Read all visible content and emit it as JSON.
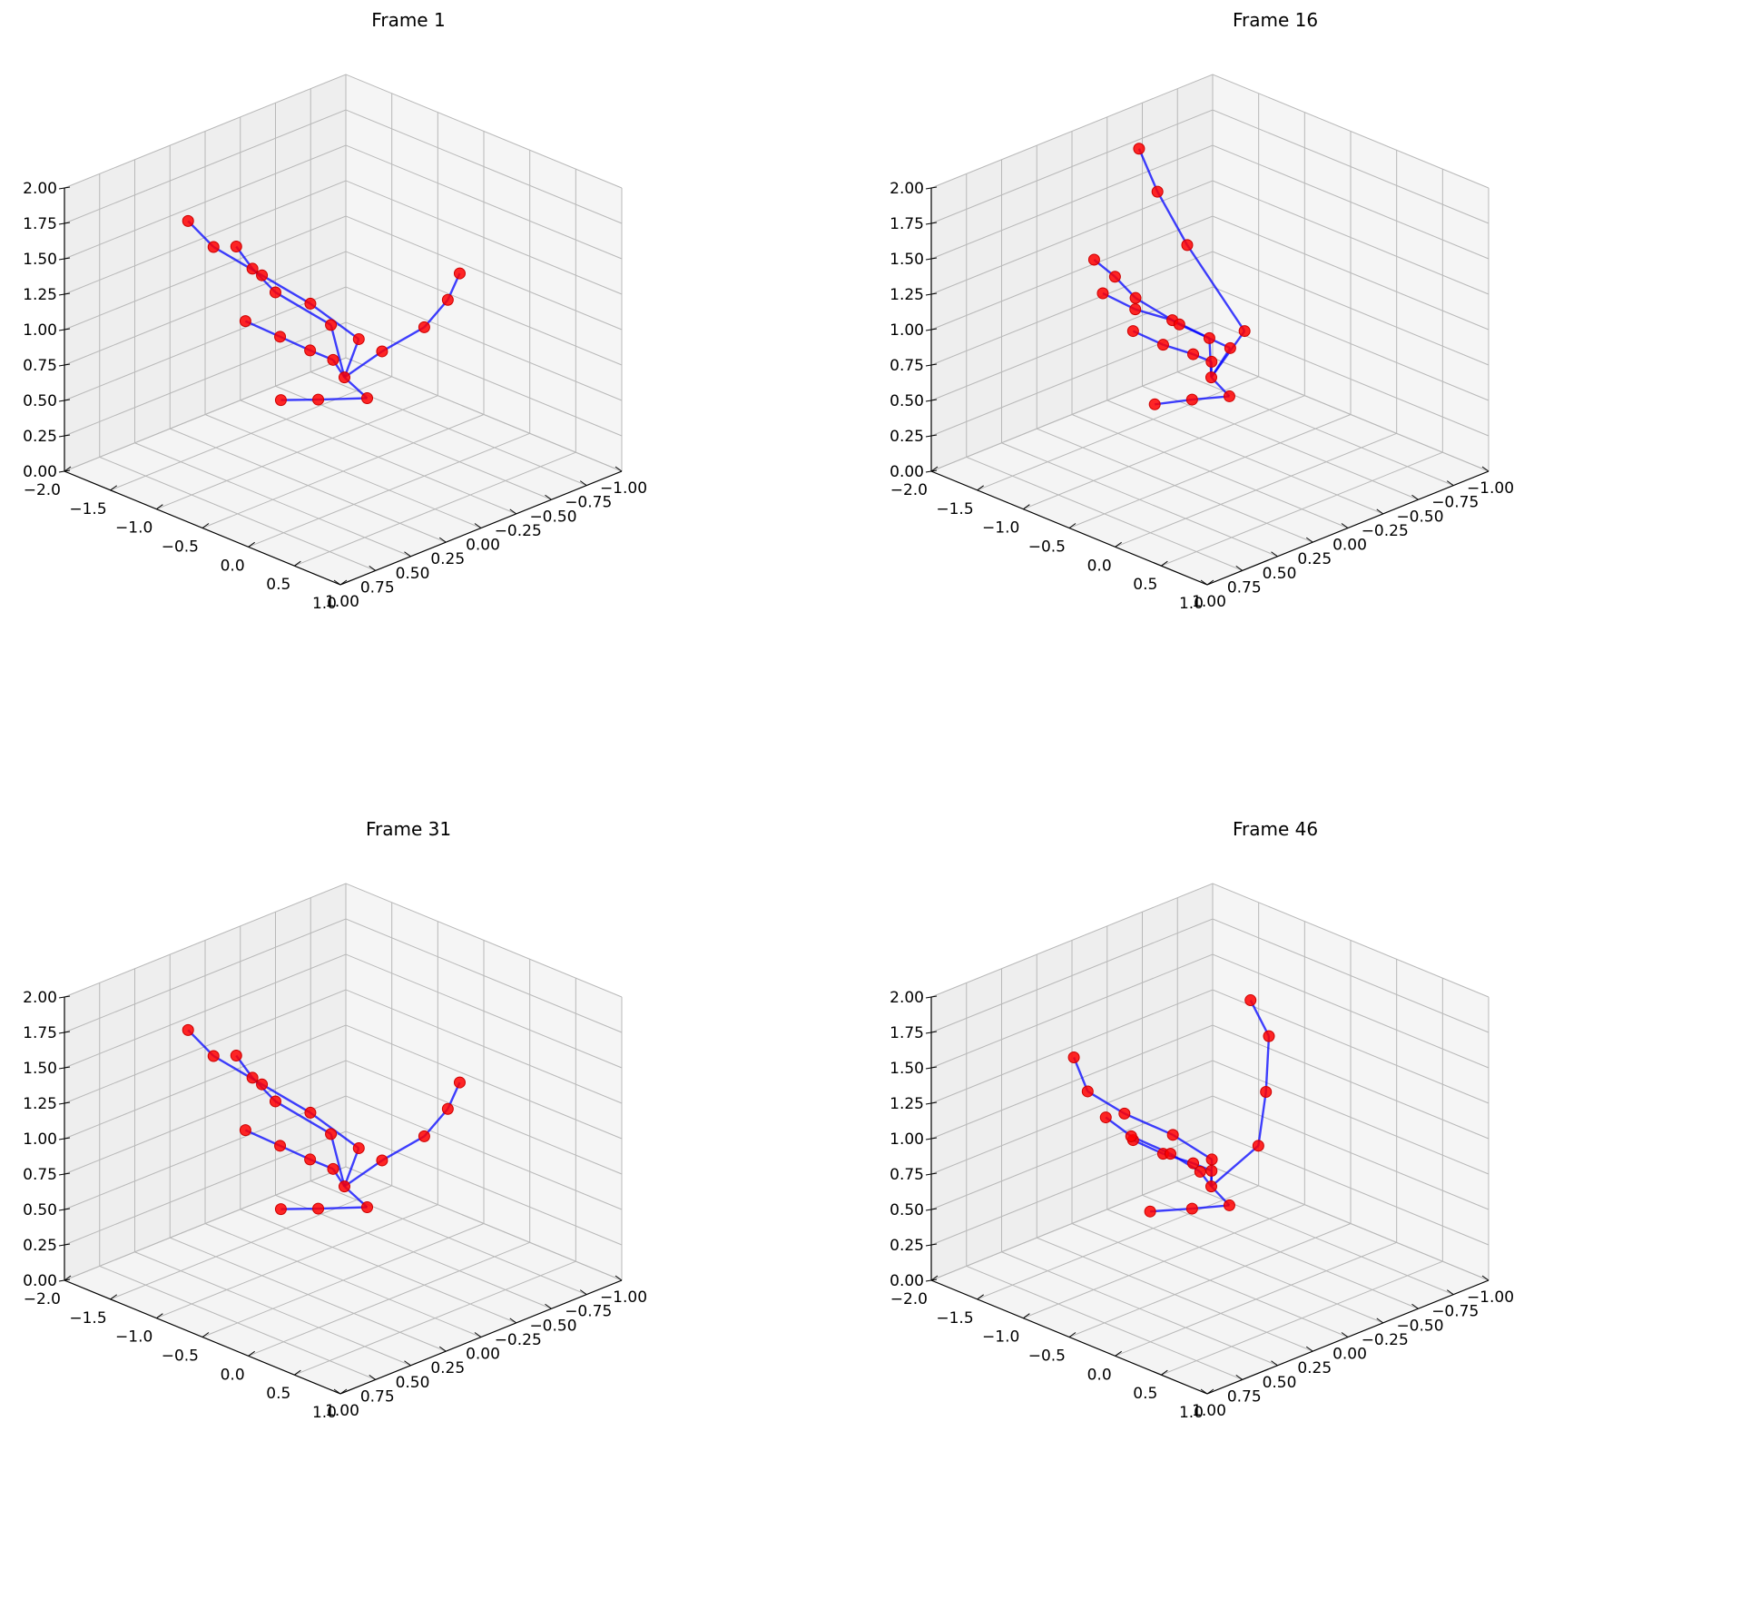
{
  "chart_data": [
    {
      "type": "scatter",
      "projection": "3d",
      "title": "Frame 1",
      "xlim": [
        -2.0,
        1.0
      ],
      "ylim": [
        -1.0,
        1.0
      ],
      "zlim": [
        0.0,
        2.0
      ],
      "x_ticks": [
        "−2.0",
        "−1.5",
        "−1.0",
        "−0.5",
        "0.0",
        "0.5",
        "1.0"
      ],
      "y_ticks": [
        "−1.00",
        "−0.75",
        "−0.50",
        "−0.25",
        "0.00",
        "0.25",
        "0.50",
        "0.75",
        "1.00"
      ],
      "z_ticks": [
        "0.00",
        "0.25",
        "0.50",
        "0.75",
        "1.00",
        "1.25",
        "1.50",
        "1.75",
        "2.00"
      ],
      "grid": true,
      "marker_color": "#ff0000",
      "line_color": "#0000ff",
      "points": [
        {
          "x": 0.05,
          "y": 0.35,
          "z": 0.95
        },
        {
          "x": -0.15,
          "y": 0.3,
          "z": 1.0
        },
        {
          "x": -0.4,
          "y": 0.3,
          "z": 1.0
        },
        {
          "x": -0.65,
          "y": 0.35,
          "z": 1.05
        },
        {
          "x": -0.95,
          "y": 0.4,
          "z": 1.1
        },
        {
          "x": -0.25,
          "y": 0.25,
          "z": 1.2
        },
        {
          "x": -0.7,
          "y": 0.35,
          "z": 1.35
        },
        {
          "x": -0.95,
          "y": 0.35,
          "z": 1.45
        },
        {
          "x": -1.05,
          "y": 0.4,
          "z": 1.6
        },
        {
          "x": -0.1,
          "y": 0.15,
          "z": 1.1
        },
        {
          "x": -0.55,
          "y": 0.2,
          "z": 1.25
        },
        {
          "x": -1.0,
          "y": 0.25,
          "z": 1.35
        },
        {
          "x": -1.45,
          "y": 0.3,
          "z": 1.45
        },
        {
          "x": -1.65,
          "y": 0.35,
          "z": 1.6
        },
        {
          "x": 0.0,
          "y": 0.05,
          "z": 1.0
        },
        {
          "x": 0.0,
          "y": -0.25,
          "z": 1.05
        },
        {
          "x": -0.05,
          "y": -0.45,
          "z": 1.15
        },
        {
          "x": -0.15,
          "y": -0.6,
          "z": 1.25
        },
        {
          "x": 0.45,
          "y": 0.45,
          "z": 0.95
        },
        {
          "x": 0.3,
          "y": 0.7,
          "z": 1.0
        },
        {
          "x": 0.2,
          "y": 0.9,
          "z": 1.05
        }
      ],
      "edges": [
        [
          0,
          1
        ],
        [
          1,
          2
        ],
        [
          2,
          3
        ],
        [
          3,
          4
        ],
        [
          0,
          5
        ],
        [
          5,
          6
        ],
        [
          6,
          7
        ],
        [
          7,
          8
        ],
        [
          0,
          9
        ],
        [
          9,
          10
        ],
        [
          10,
          11
        ],
        [
          11,
          12
        ],
        [
          12,
          13
        ],
        [
          0,
          14
        ],
        [
          14,
          15
        ],
        [
          15,
          16
        ],
        [
          16,
          17
        ],
        [
          0,
          18
        ],
        [
          18,
          19
        ],
        [
          19,
          20
        ]
      ]
    },
    {
      "type": "scatter",
      "projection": "3d",
      "title": "Frame 16",
      "xlim": [
        -2.0,
        1.0
      ],
      "ylim": [
        -1.0,
        1.0
      ],
      "zlim": [
        0.0,
        2.0
      ],
      "x_ticks": [
        "−2.0",
        "−1.5",
        "−1.0",
        "−0.5",
        "0.0",
        "0.5",
        "1.0"
      ],
      "y_ticks": [
        "−1.00",
        "−0.75",
        "−0.50",
        "−0.25",
        "0.00",
        "0.25",
        "0.50",
        "0.75",
        "1.00"
      ],
      "z_ticks": [
        "0.00",
        "0.25",
        "0.50",
        "0.75",
        "1.00",
        "1.25",
        "1.50",
        "1.75",
        "2.00"
      ],
      "grid": true,
      "marker_color": "#ff0000",
      "line_color": "#0000ff",
      "points": [
        {
          "x": 0.05,
          "y": 0.35,
          "z": 0.95
        },
        {
          "x": -0.1,
          "y": 0.25,
          "z": 0.98
        },
        {
          "x": -0.3,
          "y": 0.25,
          "z": 0.98
        },
        {
          "x": -0.55,
          "y": 0.3,
          "z": 1.0
        },
        {
          "x": -0.8,
          "y": 0.35,
          "z": 1.05
        },
        {
          "x": -0.2,
          "y": 0.2,
          "z": 1.1
        },
        {
          "x": -0.45,
          "y": 0.3,
          "z": 1.2
        },
        {
          "x": -0.7,
          "y": 0.4,
          "z": 1.25
        },
        {
          "x": -0.9,
          "y": 0.5,
          "z": 1.35
        },
        {
          "x": -0.05,
          "y": 0.15,
          "z": 1.05
        },
        {
          "x": -0.45,
          "y": 0.25,
          "z": 1.15
        },
        {
          "x": -0.85,
          "y": 0.3,
          "z": 1.25
        },
        {
          "x": -1.15,
          "y": 0.25,
          "z": 1.3
        },
        {
          "x": -1.3,
          "y": 0.3,
          "z": 1.4
        },
        {
          "x": -0.2,
          "y": -0.05,
          "z": 1.05
        },
        {
          "x": -0.9,
          "y": -0.1,
          "z": 1.45
        },
        {
          "x": -1.3,
          "y": -0.15,
          "z": 1.7
        },
        {
          "x": -1.5,
          "y": -0.15,
          "z": 1.95
        },
        {
          "x": 0.4,
          "y": 0.45,
          "z": 0.95
        },
        {
          "x": 0.3,
          "y": 0.65,
          "z": 0.98
        },
        {
          "x": 0.2,
          "y": 0.85,
          "z": 1.0
        }
      ],
      "edges": [
        [
          0,
          1
        ],
        [
          1,
          2
        ],
        [
          2,
          3
        ],
        [
          3,
          4
        ],
        [
          0,
          5
        ],
        [
          5,
          6
        ],
        [
          6,
          7
        ],
        [
          7,
          8
        ],
        [
          0,
          9
        ],
        [
          9,
          10
        ],
        [
          10,
          11
        ],
        [
          11,
          12
        ],
        [
          12,
          13
        ],
        [
          0,
          14
        ],
        [
          14,
          15
        ],
        [
          15,
          16
        ],
        [
          16,
          17
        ],
        [
          0,
          18
        ],
        [
          18,
          19
        ],
        [
          19,
          20
        ]
      ]
    },
    {
      "type": "scatter",
      "projection": "3d",
      "title": "Frame 31",
      "xlim": [
        -2.0,
        1.0
      ],
      "ylim": [
        -1.0,
        1.0
      ],
      "zlim": [
        0.0,
        2.0
      ],
      "x_ticks": [
        "−2.0",
        "−1.5",
        "−1.0",
        "−0.5",
        "0.0",
        "0.5",
        "1.0"
      ],
      "y_ticks": [
        "−1.00",
        "−0.75",
        "−0.50",
        "−0.25",
        "0.00",
        "0.25",
        "0.50",
        "0.75",
        "1.00"
      ],
      "z_ticks": [
        "0.00",
        "0.25",
        "0.50",
        "0.75",
        "1.00",
        "1.25",
        "1.50",
        "1.75",
        "2.00"
      ],
      "grid": true,
      "marker_color": "#ff0000",
      "line_color": "#0000ff",
      "points": [
        {
          "x": 0.05,
          "y": 0.35,
          "z": 0.95
        },
        {
          "x": -0.15,
          "y": 0.3,
          "z": 1.0
        },
        {
          "x": -0.4,
          "y": 0.3,
          "z": 1.0
        },
        {
          "x": -0.65,
          "y": 0.35,
          "z": 1.05
        },
        {
          "x": -0.95,
          "y": 0.4,
          "z": 1.1
        },
        {
          "x": -0.25,
          "y": 0.25,
          "z": 1.2
        },
        {
          "x": -0.7,
          "y": 0.35,
          "z": 1.35
        },
        {
          "x": -0.95,
          "y": 0.35,
          "z": 1.45
        },
        {
          "x": -1.05,
          "y": 0.4,
          "z": 1.6
        },
        {
          "x": -0.1,
          "y": 0.15,
          "z": 1.1
        },
        {
          "x": -0.55,
          "y": 0.2,
          "z": 1.25
        },
        {
          "x": -1.0,
          "y": 0.25,
          "z": 1.35
        },
        {
          "x": -1.45,
          "y": 0.3,
          "z": 1.45
        },
        {
          "x": -1.65,
          "y": 0.35,
          "z": 1.6
        },
        {
          "x": 0.0,
          "y": 0.05,
          "z": 1.0
        },
        {
          "x": 0.0,
          "y": -0.25,
          "z": 1.05
        },
        {
          "x": -0.05,
          "y": -0.45,
          "z": 1.15
        },
        {
          "x": -0.15,
          "y": -0.6,
          "z": 1.25
        },
        {
          "x": 0.45,
          "y": 0.45,
          "z": 0.95
        },
        {
          "x": 0.3,
          "y": 0.7,
          "z": 1.0
        },
        {
          "x": 0.2,
          "y": 0.9,
          "z": 1.05
        }
      ],
      "edges": [
        [
          0,
          1
        ],
        [
          1,
          2
        ],
        [
          2,
          3
        ],
        [
          3,
          4
        ],
        [
          0,
          5
        ],
        [
          5,
          6
        ],
        [
          6,
          7
        ],
        [
          7,
          8
        ],
        [
          0,
          9
        ],
        [
          9,
          10
        ],
        [
          10,
          11
        ],
        [
          11,
          12
        ],
        [
          12,
          13
        ],
        [
          0,
          14
        ],
        [
          14,
          15
        ],
        [
          15,
          16
        ],
        [
          16,
          17
        ],
        [
          0,
          18
        ],
        [
          18,
          19
        ],
        [
          19,
          20
        ]
      ]
    },
    {
      "type": "scatter",
      "projection": "3d",
      "title": "Frame 46",
      "xlim": [
        -2.0,
        1.0
      ],
      "ylim": [
        -1.0,
        1.0
      ],
      "zlim": [
        0.0,
        2.0
      ],
      "x_ticks": [
        "−2.0",
        "−1.5",
        "−1.0",
        "−0.5",
        "0.0",
        "0.5",
        "1.0"
      ],
      "y_ticks": [
        "−1.00",
        "−0.75",
        "−0.50",
        "−0.25",
        "0.00",
        "0.25",
        "0.50",
        "0.75",
        "1.00"
      ],
      "z_ticks": [
        "0.00",
        "0.25",
        "0.50",
        "0.75",
        "1.00",
        "1.25",
        "1.50",
        "1.75",
        "2.00"
      ],
      "grid": true,
      "marker_color": "#ff0000",
      "line_color": "#0000ff",
      "points": [
        {
          "x": 0.05,
          "y": 0.35,
          "z": 0.95
        },
        {
          "x": -0.1,
          "y": 0.25,
          "z": 0.98
        },
        {
          "x": -0.3,
          "y": 0.25,
          "z": 0.98
        },
        {
          "x": -0.55,
          "y": 0.3,
          "z": 1.0
        },
        {
          "x": -0.8,
          "y": 0.35,
          "z": 1.05
        },
        {
          "x": -0.3,
          "y": 0.2,
          "z": 0.9
        },
        {
          "x": -0.7,
          "y": 0.15,
          "z": 0.9
        },
        {
          "x": -1.05,
          "y": 0.2,
          "z": 0.95
        },
        {
          "x": -1.25,
          "y": 0.25,
          "z": 1.05
        },
        {
          "x": -0.25,
          "y": 0.15,
          "z": 0.98
        },
        {
          "x": -0.75,
          "y": 0.1,
          "z": 1.0
        },
        {
          "x": -1.2,
          "y": 0.15,
          "z": 1.05
        },
        {
          "x": -1.6,
          "y": 0.15,
          "z": 1.1
        },
        {
          "x": -1.75,
          "y": 0.15,
          "z": 1.3
        },
        {
          "x": -0.05,
          "y": -0.05,
          "z": 1.05
        },
        {
          "x": -0.35,
          "y": -0.3,
          "z": 1.25
        },
        {
          "x": -0.7,
          "y": -0.55,
          "z": 1.45
        },
        {
          "x": -0.9,
          "y": -0.55,
          "z": 1.65
        },
        {
          "x": 0.4,
          "y": 0.45,
          "z": 0.95
        },
        {
          "x": 0.3,
          "y": 0.65,
          "z": 0.98
        },
        {
          "x": 0.15,
          "y": 0.85,
          "z": 1.0
        }
      ],
      "edges": [
        [
          0,
          1
        ],
        [
          1,
          2
        ],
        [
          2,
          3
        ],
        [
          3,
          4
        ],
        [
          0,
          5
        ],
        [
          5,
          6
        ],
        [
          6,
          7
        ],
        [
          7,
          8
        ],
        [
          0,
          9
        ],
        [
          9,
          10
        ],
        [
          10,
          11
        ],
        [
          11,
          12
        ],
        [
          12,
          13
        ],
        [
          0,
          14
        ],
        [
          14,
          15
        ],
        [
          15,
          16
        ],
        [
          16,
          17
        ],
        [
          0,
          18
        ],
        [
          18,
          19
        ],
        [
          19,
          20
        ]
      ]
    }
  ]
}
